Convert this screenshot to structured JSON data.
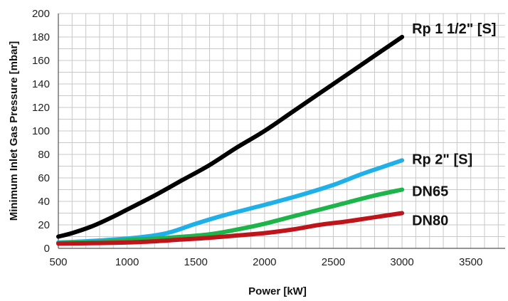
{
  "chart_data": {
    "type": "line",
    "title": "",
    "xlabel": "Power [kW]",
    "ylabel": "Minimum Inlet Gas Pressure [mbar]",
    "xlim": [
      500,
      3750
    ],
    "ylim": [
      0,
      200
    ],
    "xticks": [
      500,
      1000,
      1500,
      2000,
      2500,
      3000,
      3500
    ],
    "yticks": [
      0,
      20,
      40,
      60,
      80,
      100,
      120,
      140,
      160,
      180,
      200
    ],
    "grid": true,
    "legend": "labels at line ends",
    "series": [
      {
        "name": "Rp 1 1/2\" [S]",
        "color": "#000000",
        "points": [
          [
            500,
            10
          ],
          [
            600,
            13
          ],
          [
            750,
            19
          ],
          [
            900,
            27
          ],
          [
            1000,
            33
          ],
          [
            1200,
            45
          ],
          [
            1400,
            58
          ],
          [
            1600,
            71
          ],
          [
            1800,
            86
          ],
          [
            2000,
            100
          ],
          [
            2200,
            116
          ],
          [
            2400,
            132
          ],
          [
            2600,
            148
          ],
          [
            2800,
            164
          ],
          [
            3000,
            180
          ]
        ]
      },
      {
        "name": "Rp  2\" [S]",
        "color": "#1fb0ea",
        "points": [
          [
            500,
            5
          ],
          [
            700,
            6
          ],
          [
            900,
            7.5
          ],
          [
            1100,
            9.5
          ],
          [
            1250,
            12
          ],
          [
            1350,
            15
          ],
          [
            1500,
            21
          ],
          [
            1700,
            28
          ],
          [
            2000,
            37
          ],
          [
            2250,
            45
          ],
          [
            2500,
            54
          ],
          [
            2700,
            63
          ],
          [
            2850,
            69
          ],
          [
            3000,
            75
          ]
        ]
      },
      {
        "name": "DN65",
        "color": "#1db44a",
        "points": [
          [
            500,
            4.5
          ],
          [
            800,
            5.5
          ],
          [
            1000,
            7
          ],
          [
            1300,
            9
          ],
          [
            1600,
            12
          ],
          [
            1800,
            16
          ],
          [
            2000,
            21
          ],
          [
            2200,
            27
          ],
          [
            2400,
            33
          ],
          [
            2600,
            39
          ],
          [
            2800,
            45
          ],
          [
            3000,
            50
          ]
        ]
      },
      {
        "name": "DN80",
        "color": "#c0141b",
        "points": [
          [
            500,
            4
          ],
          [
            800,
            4.5
          ],
          [
            1000,
            5
          ],
          [
            1200,
            6
          ],
          [
            1400,
            7.5
          ],
          [
            1600,
            9
          ],
          [
            1800,
            11
          ],
          [
            2000,
            13
          ],
          [
            2200,
            16
          ],
          [
            2400,
            20
          ],
          [
            2600,
            23
          ],
          [
            2800,
            26.5
          ],
          [
            3000,
            30
          ]
        ]
      }
    ]
  }
}
